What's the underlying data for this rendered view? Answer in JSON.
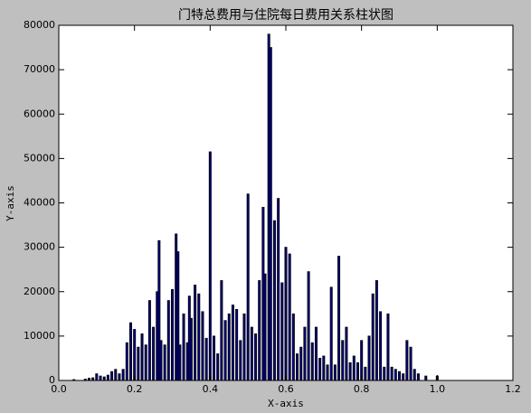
{
  "chart_data": {
    "type": "bar",
    "title": "门特总费用与住院每日费用关系柱状图",
    "xlabel": "X-axis",
    "ylabel": "Y-axis",
    "color": "#00008b",
    "edgecolor": "#000000",
    "x": [
      0.04,
      0.07,
      0.08,
      0.09,
      0.1,
      0.11,
      0.12,
      0.13,
      0.14,
      0.15,
      0.16,
      0.17,
      0.18,
      0.19,
      0.2,
      0.21,
      0.22,
      0.23,
      0.24,
      0.25,
      0.26,
      0.265,
      0.27,
      0.28,
      0.29,
      0.3,
      0.31,
      0.315,
      0.32,
      0.33,
      0.34,
      0.345,
      0.35,
      0.36,
      0.37,
      0.38,
      0.39,
      0.4,
      0.41,
      0.42,
      0.43,
      0.44,
      0.45,
      0.46,
      0.47,
      0.48,
      0.49,
      0.5,
      0.51,
      0.52,
      0.53,
      0.54,
      0.545,
      0.555,
      0.56,
      0.57,
      0.58,
      0.59,
      0.6,
      0.61,
      0.62,
      0.63,
      0.64,
      0.65,
      0.66,
      0.67,
      0.68,
      0.69,
      0.7,
      0.71,
      0.72,
      0.73,
      0.74,
      0.75,
      0.76,
      0.77,
      0.78,
      0.79,
      0.8,
      0.81,
      0.82,
      0.83,
      0.84,
      0.85,
      0.86,
      0.87,
      0.88,
      0.89,
      0.9,
      0.91,
      0.92,
      0.93,
      0.94,
      0.95,
      0.97,
      1.0
    ],
    "values": [
      200,
      300,
      500,
      600,
      1500,
      1000,
      800,
      1200,
      2000,
      2500,
      1500,
      2500,
      8500,
      13000,
      11500,
      7500,
      10500,
      8000,
      18000,
      12000,
      20000,
      31500,
      9000,
      8000,
      18000,
      20500,
      33000,
      29000,
      8000,
      15000,
      8500,
      19000,
      14000,
      21500,
      19500,
      15500,
      9500,
      51500,
      10000,
      6000,
      22500,
      13500,
      15000,
      17000,
      16000,
      9000,
      15000,
      42000,
      12000,
      10500,
      22500,
      39000,
      24000,
      78000,
      75000,
      36000,
      41000,
      22000,
      30000,
      28500,
      15000,
      6000,
      7500,
      12000,
      24500,
      8500,
      12000,
      5000,
      5500,
      3500,
      21000,
      3500,
      28000,
      9000,
      12000,
      4000,
      5500,
      4000,
      9000,
      3000,
      10000,
      19500,
      22500,
      15500,
      3000,
      15000,
      3000,
      2500,
      2000,
      1500,
      9000,
      7500,
      2500,
      1500,
      1000,
      1000
    ],
    "xlim": [
      0,
      1.2
    ],
    "xticks": [
      {
        "value": 0,
        "label": "0.0"
      },
      0.2,
      0.4,
      0.6,
      0.8,
      {
        "value": 1,
        "label": "1.0"
      },
      1.2
    ],
    "ylim": [
      0,
      80000
    ],
    "yticks": [
      0,
      10000,
      20000,
      30000,
      40000,
      50000,
      60000,
      70000,
      80000
    ]
  }
}
